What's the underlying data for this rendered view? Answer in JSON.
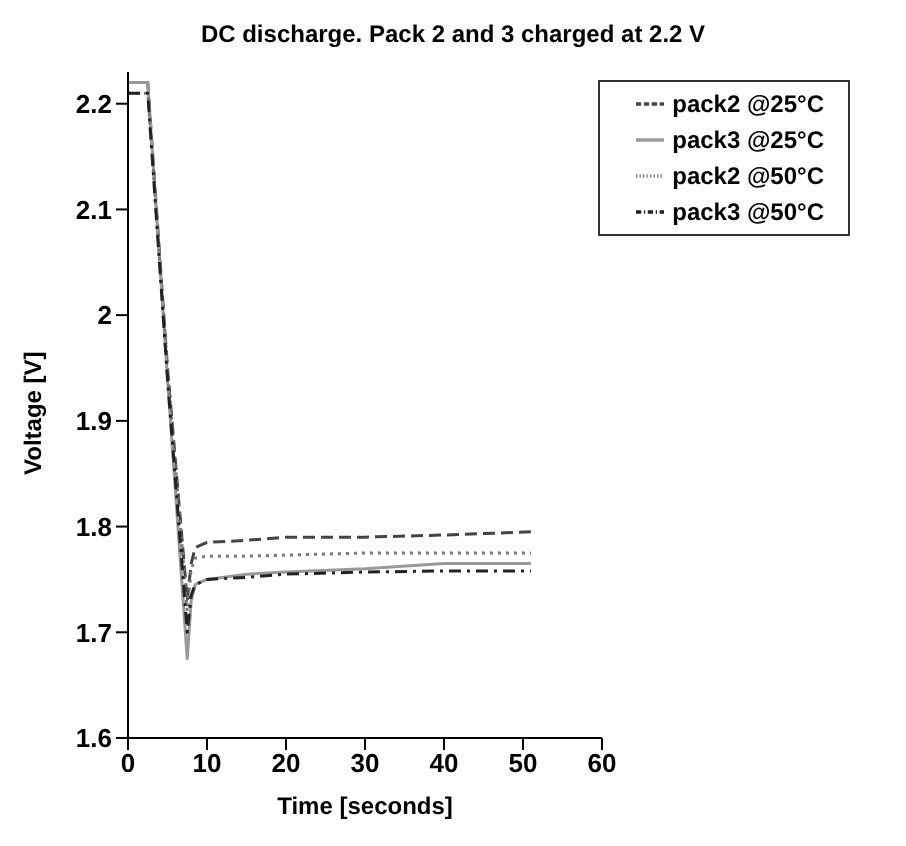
{
  "chart_data": {
    "type": "line",
    "title": "DC discharge. Pack 2 and 3 charged at 2.2 V",
    "xlabel": "Time [seconds]",
    "ylabel": "Voltage [V]",
    "x": [
      0,
      2.5,
      5,
      7.5,
      8,
      8.5,
      10,
      15,
      20,
      30,
      40,
      51
    ],
    "series": [
      {
        "name": "pack2 @25°C",
        "color": "#444444",
        "line_style": "dashed",
        "values": [
          2.22,
          2.22,
          1.95,
          1.73,
          1.765,
          1.78,
          1.785,
          1.787,
          1.79,
          1.79,
          1.792,
          1.795
        ]
      },
      {
        "name": "pack3 @25°C",
        "color": "#999999",
        "line_style": "solid",
        "values": [
          2.22,
          2.22,
          1.94,
          1.675,
          1.73,
          1.745,
          1.75,
          1.755,
          1.757,
          1.76,
          1.765,
          1.765
        ]
      },
      {
        "name": "pack2 @50°C",
        "color": "#777777",
        "line_style": "dotted",
        "values": [
          2.21,
          2.21,
          1.95,
          1.72,
          1.76,
          1.77,
          1.772,
          1.772,
          1.773,
          1.775,
          1.775,
          1.775
        ]
      },
      {
        "name": "pack3 @50°C",
        "color": "#222222",
        "line_style": "dashdot",
        "values": [
          2.21,
          2.21,
          1.94,
          1.7,
          1.735,
          1.745,
          1.75,
          1.752,
          1.755,
          1.757,
          1.758,
          1.758
        ]
      }
    ],
    "xlim": [
      0,
      60
    ],
    "xticks": [
      0,
      10,
      20,
      30,
      40,
      50,
      60
    ],
    "ylim": [
      1.6,
      2.23
    ],
    "yticks": [
      1.6,
      1.7,
      1.8,
      1.9,
      2,
      2.1,
      2.2
    ],
    "legend": "top right",
    "grid": false
  }
}
